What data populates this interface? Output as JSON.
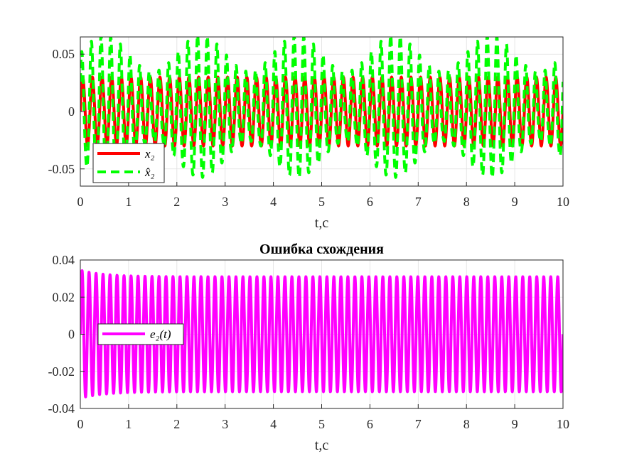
{
  "chart_data": [
    {
      "type": "line",
      "title": "",
      "xlabel": "t,c",
      "ylabel": "",
      "xlim": [
        0,
        10
      ],
      "ylim": [
        -0.065,
        0.065
      ],
      "xticks": [
        0,
        1,
        2,
        3,
        4,
        5,
        6,
        7,
        8,
        9,
        10
      ],
      "xtick_labels": [
        "0",
        "1",
        "2",
        "3",
        "4",
        "5",
        "6",
        "7",
        "8",
        "9",
        "10"
      ],
      "yticks": [
        0.05,
        0,
        -0.05
      ],
      "ytick_labels": [
        "0.05",
        "0",
        "-0.05"
      ],
      "grid": true,
      "legend_position": "bottom-left",
      "series": [
        {
          "name": "x₂",
          "color": "#ff0000",
          "style": "solid",
          "amplitude": 0.03,
          "offset": 0,
          "frequency_hz": 5,
          "x_range": [
            0,
            10
          ]
        },
        {
          "name": "x̂₂",
          "color": "#00ff00",
          "style": "dashed",
          "amplitude": 0.03,
          "offset": 0,
          "frequency_hz": 5,
          "x_range": [
            0,
            10
          ],
          "beat_envelope_max": 0.062,
          "beat_envelope_min": 0.03
        }
      ]
    },
    {
      "type": "line",
      "title": "Ошибка схождения",
      "xlabel": "t,c",
      "ylabel": "",
      "xlim": [
        0,
        10
      ],
      "ylim": [
        -0.04,
        0.04
      ],
      "xticks": [
        0,
        1,
        2,
        3,
        4,
        5,
        6,
        7,
        8,
        9,
        10
      ],
      "xtick_labels": [
        "0",
        "1",
        "2",
        "3",
        "4",
        "5",
        "6",
        "7",
        "8",
        "9",
        "10"
      ],
      "yticks": [
        0.04,
        0.02,
        0,
        -0.02,
        -0.04
      ],
      "ytick_labels": [
        "0.04",
        "0.02",
        "0",
        "-0.02",
        "-0.04"
      ],
      "grid": true,
      "legend_position": "middle-left",
      "series": [
        {
          "name": "e₂(t)",
          "color": "#ff00ff",
          "style": "solid",
          "amplitude": 0.031,
          "initial_peak": 0.0345,
          "frequency_hz": 6.9,
          "x_range": [
            0,
            10
          ]
        }
      ]
    }
  ]
}
